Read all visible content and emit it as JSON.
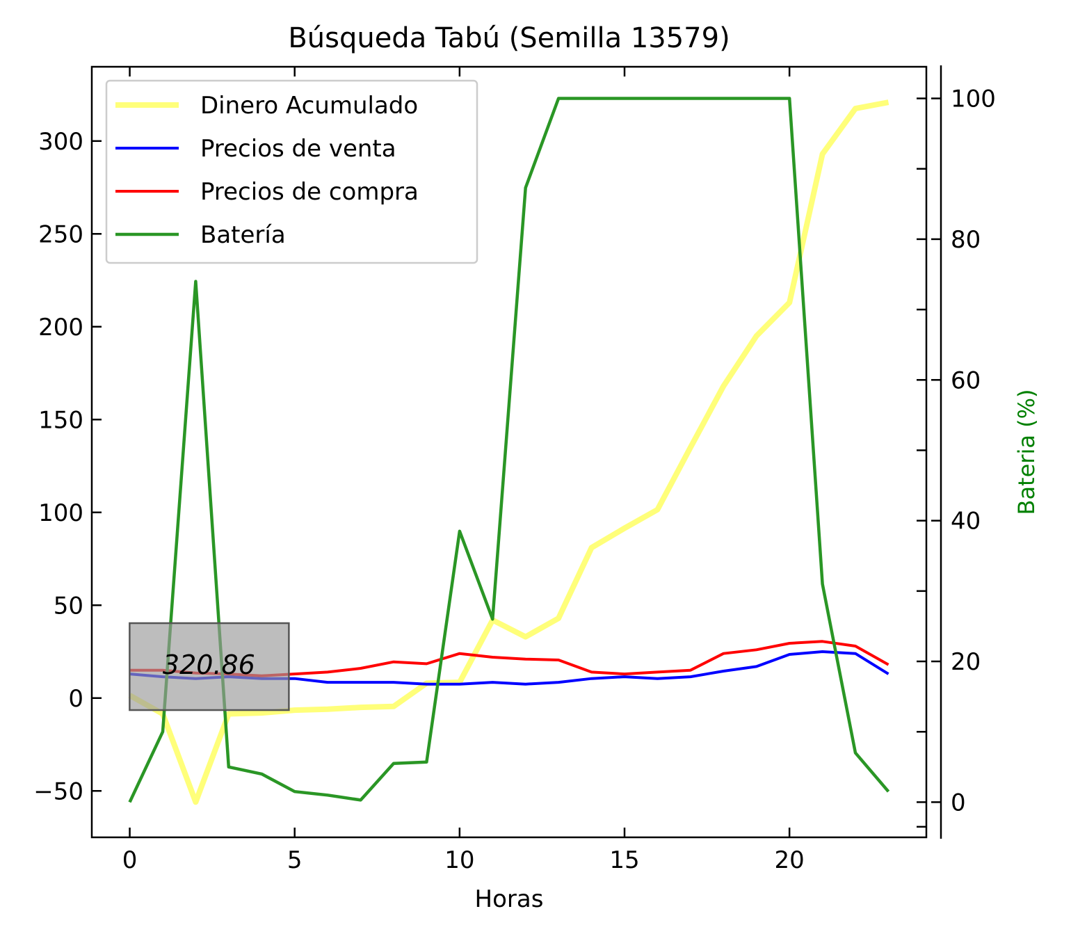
{
  "chart_data": {
    "type": "line",
    "title": "Búsqueda Tabú (Semilla 13579)",
    "xlabel": "Horas",
    "ylabel": "",
    "y2label": "Bateria (%)",
    "xlim": [
      -1.15,
      24.15
    ],
    "ylim": [
      -75,
      340
    ],
    "y2lim": [
      -5,
      104.5
    ],
    "xticks": [
      0,
      5,
      10,
      15,
      20
    ],
    "yticks": [
      -50,
      0,
      50,
      100,
      150,
      200,
      250,
      300
    ],
    "ytick_labels": [
      "−50",
      "0",
      "50",
      "100",
      "150",
      "200",
      "250",
      "300"
    ],
    "y2ticks": [
      0,
      20,
      40,
      60,
      80,
      100
    ],
    "legend_position": "upper-left",
    "annotation": {
      "text": "320.86",
      "x": 2.4,
      "y": 17.5
    },
    "x": [
      0,
      1,
      2,
      3,
      4,
      5,
      6,
      7,
      8,
      9,
      10,
      11,
      12,
      13,
      14,
      15,
      16,
      17,
      18,
      19,
      20,
      21,
      22,
      23
    ],
    "series": [
      {
        "name": "Dinero Acumulado",
        "axis": "left",
        "color": "#ffff4d",
        "values": [
          1.5,
          -8.5,
          -56,
          -8.5,
          -8,
          -6.5,
          -6,
          -5,
          -4.5,
          8,
          8.5,
          42,
          33,
          43,
          81,
          91.5,
          101.5,
          135,
          168,
          195,
          213,
          293,
          317.5,
          320.86
        ]
      },
      {
        "name": "Precios de venta",
        "axis": "left",
        "color": "#0000ff",
        "values": [
          13,
          11.5,
          10.5,
          11.5,
          10.5,
          10.5,
          8.5,
          8.5,
          8.5,
          7.5,
          7.5,
          8.5,
          7.5,
          8.5,
          10.5,
          11.5,
          10.5,
          11.5,
          14.5,
          17,
          23.5,
          25,
          24,
          13
        ]
      },
      {
        "name": "Precios de compra",
        "axis": "left",
        "color": "#ff0000",
        "values": [
          15,
          15,
          13.5,
          13,
          12,
          13,
          14,
          16,
          19.5,
          18.5,
          24,
          22,
          21,
          20.5,
          14,
          13,
          14,
          15,
          24,
          26,
          29.5,
          30.5,
          28,
          18
        ]
      },
      {
        "name": "Batería",
        "axis": "right",
        "color": "#2a9625",
        "values": [
          0,
          10,
          74,
          5,
          4,
          1.5,
          1,
          0.3,
          5.5,
          5.7,
          38.5,
          26,
          87.3,
          100,
          100,
          100,
          100,
          100,
          100,
          100,
          100,
          31,
          7,
          1.5
        ]
      }
    ]
  }
}
